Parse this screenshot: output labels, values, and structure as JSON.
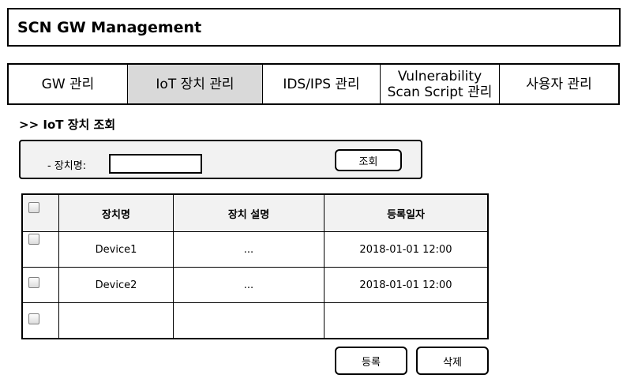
{
  "app": {
    "title": "SCN GW Management"
  },
  "tabs": [
    {
      "label": "GW 관리",
      "active": false
    },
    {
      "label": "IoT 장치 관리",
      "active": true
    },
    {
      "label": "IDS/IPS 관리",
      "active": false
    },
    {
      "label": "Vulnerability\nScan Script 관리",
      "active": false
    },
    {
      "label": "사용자 관리",
      "active": false
    }
  ],
  "section": {
    "title": ">> IoT 장치 조회"
  },
  "search": {
    "label": "- 장치명:",
    "value": "",
    "button_label": "조회"
  },
  "table": {
    "columns": [
      "장치명",
      "장치 설명",
      "등록일자"
    ],
    "rows": [
      {
        "name": "Device1",
        "description": "...",
        "date": "2018-01-01   12:00"
      },
      {
        "name": "Device2",
        "description": "...",
        "date": "2018-01-01   12:00"
      },
      {
        "name": "",
        "description": "",
        "date": ""
      }
    ]
  },
  "actions": {
    "register_label": "등록",
    "delete_label": "삭제"
  },
  "colors": {
    "active_tab": "#d9d9d9",
    "panel_bg": "#f2f2f2",
    "border": "#000000"
  }
}
